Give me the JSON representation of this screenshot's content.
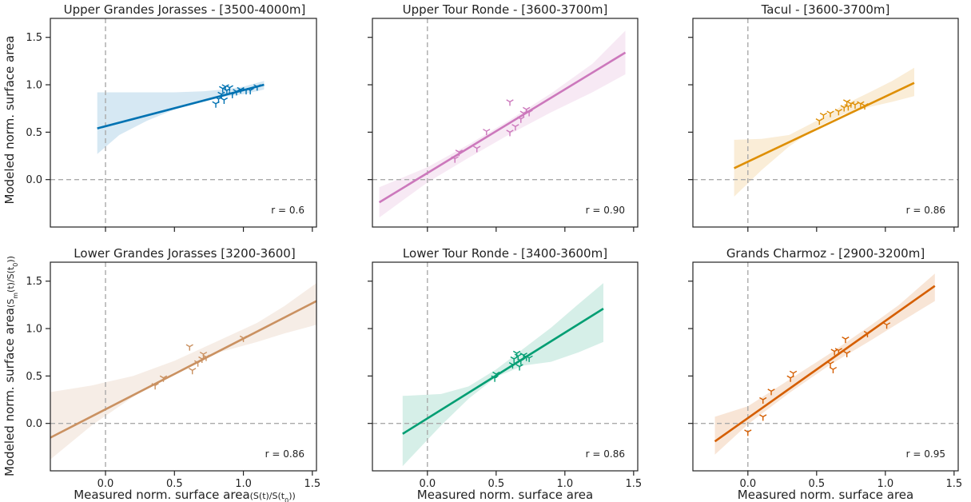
{
  "chart_data": [
    {
      "type": "scatter",
      "title": "Upper Grandes Jorasses - [3500-4000m]",
      "color": "#0072b2",
      "r_label": "r = 0.6",
      "ylabel": "Modeled norm. surface area",
      "xlim": [
        -0.4,
        1.53
      ],
      "ylim": [
        -0.5,
        1.7
      ],
      "xticks": [
        0.0,
        0.5,
        1.0,
        1.5
      ],
      "yticks": [
        0.0,
        0.5,
        1.0,
        1.5
      ],
      "x_ticklabels_visible": false,
      "y_ticklabels_visible": true,
      "fit": {
        "x": [
          -0.06,
          1.15
        ],
        "y": [
          0.54,
          1.0
        ]
      },
      "ci_band": {
        "x": [
          -0.06,
          0.1,
          0.3,
          0.5,
          0.7,
          0.85,
          1.0,
          1.15
        ],
        "lower": [
          0.27,
          0.47,
          0.62,
          0.74,
          0.82,
          0.87,
          0.9,
          0.95
        ],
        "upper": [
          0.92,
          0.92,
          0.92,
          0.92,
          0.93,
          0.95,
          0.98,
          1.04
        ]
      },
      "points": [
        {
          "x": 0.8,
          "y": 0.8
        },
        {
          "x": 0.82,
          "y": 0.85
        },
        {
          "x": 0.84,
          "y": 0.9
        },
        {
          "x": 0.85,
          "y": 0.96
        },
        {
          "x": 0.87,
          "y": 0.98
        },
        {
          "x": 0.88,
          "y": 0.94
        },
        {
          "x": 0.9,
          "y": 0.97
        },
        {
          "x": 0.92,
          "y": 0.9
        },
        {
          "x": 0.95,
          "y": 0.93
        },
        {
          "x": 0.98,
          "y": 0.95
        },
        {
          "x": 1.02,
          "y": 0.94
        },
        {
          "x": 1.05,
          "y": 0.94
        },
        {
          "x": 1.1,
          "y": 0.98
        },
        {
          "x": 0.86,
          "y": 0.84
        }
      ]
    },
    {
      "type": "scatter",
      "title": "Upper Tour Ronde - [3600-3700m]",
      "color": "#cc78bc",
      "r_label": "r = 0.90",
      "xlim": [
        -0.4,
        1.53
      ],
      "ylim": [
        -0.5,
        1.7
      ],
      "xticks": [
        0.0,
        0.5,
        1.0,
        1.5
      ],
      "yticks": [
        0.0,
        0.5,
        1.0,
        1.5
      ],
      "x_ticklabels_visible": false,
      "y_ticklabels_visible": false,
      "fit": {
        "x": [
          -0.35,
          1.44
        ],
        "y": [
          -0.24,
          1.34
        ]
      },
      "ci_band": {
        "x": [
          -0.35,
          0.0,
          0.3,
          0.6,
          0.9,
          1.2,
          1.44
        ],
        "lower": [
          -0.4,
          -0.03,
          0.23,
          0.48,
          0.71,
          0.92,
          1.11
        ],
        "upper": [
          -0.08,
          0.13,
          0.37,
          0.63,
          0.91,
          1.22,
          1.57
        ]
      },
      "points": [
        {
          "x": 0.2,
          "y": 0.22
        },
        {
          "x": 0.23,
          "y": 0.29
        },
        {
          "x": 0.36,
          "y": 0.33
        },
        {
          "x": 0.43,
          "y": 0.51
        },
        {
          "x": 0.6,
          "y": 0.5
        },
        {
          "x": 0.6,
          "y": 0.82
        },
        {
          "x": 0.64,
          "y": 0.56
        },
        {
          "x": 0.68,
          "y": 0.64
        },
        {
          "x": 0.7,
          "y": 0.7
        },
        {
          "x": 0.72,
          "y": 0.74
        },
        {
          "x": 0.74,
          "y": 0.71
        }
      ]
    },
    {
      "type": "scatter",
      "title": "Tacul - [3600-3700m]",
      "color": "#de8f05",
      "r_label": "r = 0.86",
      "xlim": [
        -0.4,
        1.53
      ],
      "ylim": [
        -0.5,
        1.7
      ],
      "xticks": [
        0.0,
        0.5,
        1.0,
        1.5
      ],
      "yticks": [
        0.0,
        0.5,
        1.0,
        1.5
      ],
      "x_ticklabels_visible": false,
      "y_ticklabels_visible": false,
      "fit": {
        "x": [
          -0.1,
          1.21
        ],
        "y": [
          0.12,
          1.02
        ]
      },
      "ci_band": {
        "x": [
          -0.1,
          0.1,
          0.3,
          0.5,
          0.7,
          0.9,
          1.05,
          1.21
        ],
        "lower": [
          -0.18,
          0.1,
          0.35,
          0.55,
          0.69,
          0.77,
          0.82,
          0.88
        ],
        "upper": [
          0.42,
          0.43,
          0.47,
          0.62,
          0.79,
          0.93,
          1.04,
          1.18
        ]
      },
      "points": [
        {
          "x": 0.52,
          "y": 0.62
        },
        {
          "x": 0.55,
          "y": 0.68
        },
        {
          "x": 0.6,
          "y": 0.7
        },
        {
          "x": 0.66,
          "y": 0.72
        },
        {
          "x": 0.7,
          "y": 0.76
        },
        {
          "x": 0.72,
          "y": 0.82
        },
        {
          "x": 0.75,
          "y": 0.8
        },
        {
          "x": 0.78,
          "y": 0.79
        },
        {
          "x": 0.82,
          "y": 0.8
        },
        {
          "x": 0.85,
          "y": 0.78
        },
        {
          "x": 0.73,
          "y": 0.77
        }
      ]
    },
    {
      "type": "scatter",
      "title": "Lower Grandes  Jorasses  [3200-3600]",
      "color": "#ca9161",
      "r_label": "r = 0.86",
      "ylabel_main": "Modeled norm. surface area",
      "ylabel_sub": "(S",
      "ylabel_sub_m": "m",
      "ylabel_sub_mid": "(t)/S(t",
      "ylabel_sub_0": "0",
      "ylabel_sub_end": "))",
      "xlabel_main": "Measured norm. surface area",
      "xlabel_sub": "(S(t)/S(t",
      "xlabel_sub_0": "0",
      "xlabel_sub_end": "))",
      "xlim": [
        -0.4,
        1.53
      ],
      "ylim": [
        -0.5,
        1.7
      ],
      "xticks": [
        0.0,
        0.5,
        1.0,
        1.5
      ],
      "yticks": [
        0.0,
        0.5,
        1.0,
        1.5
      ],
      "xticklabels": [
        "0.0",
        "0.5",
        "1.0",
        "1.5"
      ],
      "yticklabels": [
        "0.0",
        "0.5",
        "1.0",
        "1.5"
      ],
      "x_ticklabels_visible": true,
      "y_ticklabels_visible": true,
      "fit": {
        "x": [
          -0.4,
          1.53
        ],
        "y": [
          -0.15,
          1.29
        ]
      },
      "ci_band": {
        "x": [
          -0.4,
          -0.1,
          0.2,
          0.5,
          0.8,
          1.1,
          1.3,
          1.53
        ],
        "lower": [
          -0.38,
          -0.02,
          0.28,
          0.54,
          0.74,
          0.86,
          0.95,
          1.04
        ],
        "upper": [
          0.33,
          0.4,
          0.5,
          0.66,
          0.86,
          1.06,
          1.24,
          1.48
        ]
      },
      "points": [
        {
          "x": 0.36,
          "y": 0.4
        },
        {
          "x": 0.42,
          "y": 0.48
        },
        {
          "x": 0.61,
          "y": 0.81
        },
        {
          "x": 0.63,
          "y": 0.56
        },
        {
          "x": 0.67,
          "y": 0.64
        },
        {
          "x": 0.7,
          "y": 0.68
        },
        {
          "x": 0.71,
          "y": 0.73
        },
        {
          "x": 0.73,
          "y": 0.7
        },
        {
          "x": 1.0,
          "y": 0.9
        }
      ]
    },
    {
      "type": "scatter",
      "title": "Lower Tour Ronde - [3400-3600m]",
      "color": "#029e73",
      "r_label": "r = 0.86",
      "xlabel_main": "Measured norm. surface area",
      "xlim": [
        -0.4,
        1.53
      ],
      "ylim": [
        -0.5,
        1.7
      ],
      "xticks": [
        0.0,
        0.5,
        1.0,
        1.5
      ],
      "yticks": [
        0.0,
        0.5,
        1.0,
        1.5
      ],
      "xticklabels": [
        "0.0",
        "0.5",
        "1.0",
        "1.5"
      ],
      "x_ticklabels_visible": true,
      "y_ticklabels_visible": false,
      "fit": {
        "x": [
          -0.18,
          1.28
        ],
        "y": [
          -0.11,
          1.21
        ]
      },
      "ci_band": {
        "x": [
          -0.18,
          0.1,
          0.3,
          0.5,
          0.7,
          0.9,
          1.1,
          1.28
        ],
        "lower": [
          -0.45,
          -0.02,
          0.26,
          0.49,
          0.61,
          0.65,
          0.75,
          0.86
        ],
        "upper": [
          0.29,
          0.31,
          0.39,
          0.57,
          0.79,
          1.01,
          1.26,
          1.48
        ]
      },
      "points": [
        {
          "x": 0.49,
          "y": 0.48
        },
        {
          "x": 0.5,
          "y": 0.52
        },
        {
          "x": 0.62,
          "y": 0.62
        },
        {
          "x": 0.63,
          "y": 0.68
        },
        {
          "x": 0.65,
          "y": 0.74
        },
        {
          "x": 0.66,
          "y": 0.71
        },
        {
          "x": 0.67,
          "y": 0.6
        },
        {
          "x": 0.68,
          "y": 0.66
        },
        {
          "x": 0.7,
          "y": 0.72
        },
        {
          "x": 0.72,
          "y": 0.7
        },
        {
          "x": 0.74,
          "y": 0.69
        }
      ]
    },
    {
      "type": "scatter",
      "title": "Grands Charmoz - [2900-3200m]",
      "color": "#d55e00",
      "r_label": "r = 0.95",
      "xlabel_main": "Measured norm. surface area",
      "xlim": [
        -0.4,
        1.53
      ],
      "ylim": [
        -0.5,
        1.7
      ],
      "xticks": [
        0.0,
        0.5,
        1.0,
        1.5
      ],
      "yticks": [
        0.0,
        0.5,
        1.0,
        1.5
      ],
      "xticklabels": [
        "0.0",
        "0.5",
        "1.0",
        "1.5"
      ],
      "x_ticklabels_visible": true,
      "y_ticklabels_visible": false,
      "fit": {
        "x": [
          -0.24,
          1.36
        ],
        "y": [
          -0.19,
          1.45
        ]
      },
      "ci_band": {
        "x": [
          -0.24,
          0.0,
          0.3,
          0.6,
          0.9,
          1.1,
          1.36
        ],
        "lower": [
          -0.33,
          -0.01,
          0.32,
          0.62,
          0.88,
          1.06,
          1.29
        ],
        "upper": [
          0.07,
          0.18,
          0.46,
          0.74,
          1.04,
          1.25,
          1.58
        ]
      },
      "points": [
        {
          "x": 0.0,
          "y": -0.09
        },
        {
          "x": 0.11,
          "y": 0.07
        },
        {
          "x": 0.11,
          "y": 0.25
        },
        {
          "x": 0.17,
          "y": 0.34
        },
        {
          "x": 0.31,
          "y": 0.48
        },
        {
          "x": 0.33,
          "y": 0.53
        },
        {
          "x": 0.6,
          "y": 0.63
        },
        {
          "x": 0.62,
          "y": 0.57
        },
        {
          "x": 0.63,
          "y": 0.76
        },
        {
          "x": 0.66,
          "y": 0.77
        },
        {
          "x": 0.71,
          "y": 0.89
        },
        {
          "x": 0.72,
          "y": 0.74
        },
        {
          "x": 0.87,
          "y": 0.95
        },
        {
          "x": 1.01,
          "y": 1.04
        }
      ]
    }
  ]
}
